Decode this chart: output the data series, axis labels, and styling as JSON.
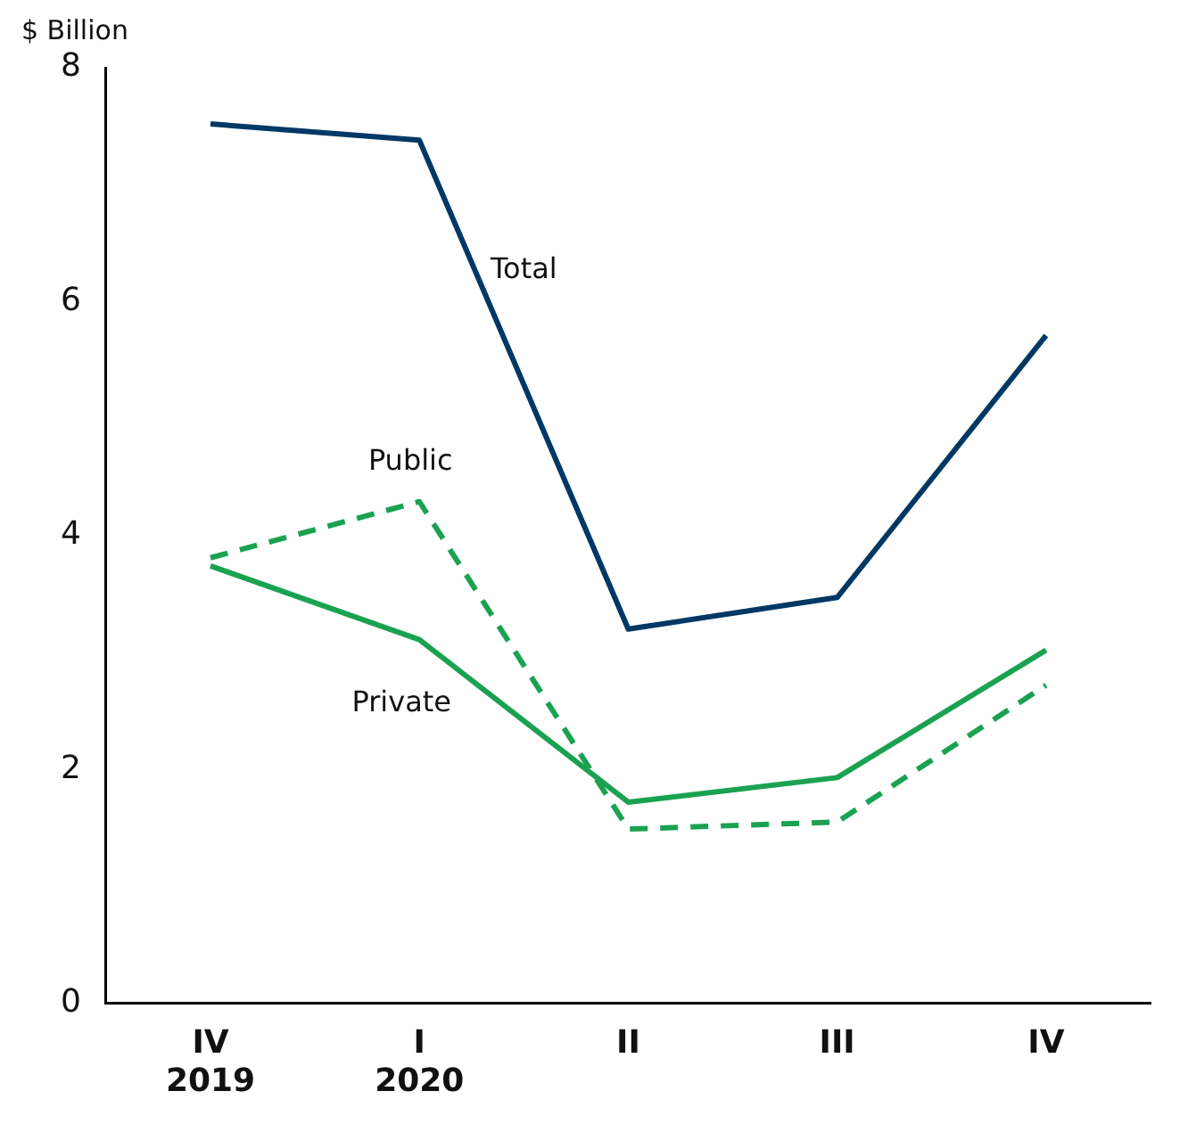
{
  "chart_data": {
    "type": "line",
    "ylabel": "$ Billion",
    "categories": [
      "IV\n2019",
      "I\n2020",
      "II",
      "III",
      "IV"
    ],
    "ylim": [
      0,
      8
    ],
    "yticks": [
      0,
      2,
      4,
      6,
      8
    ],
    "grid": false,
    "legend": false,
    "marker": "none",
    "series": [
      {
        "name": "Total",
        "color": "#003865",
        "line_style": "solid",
        "values": [
          7.52,
          7.38,
          3.2,
          3.47,
          5.71
        ]
      },
      {
        "name": "Public",
        "color": "#1aa251",
        "line_style": "dashed",
        "values": [
          3.81,
          4.29,
          1.49,
          1.55,
          2.72
        ]
      },
      {
        "name": "Private",
        "color": "#1aa251",
        "line_style": "solid",
        "values": [
          3.74,
          3.11,
          1.72,
          1.93,
          3.02
        ]
      }
    ]
  }
}
